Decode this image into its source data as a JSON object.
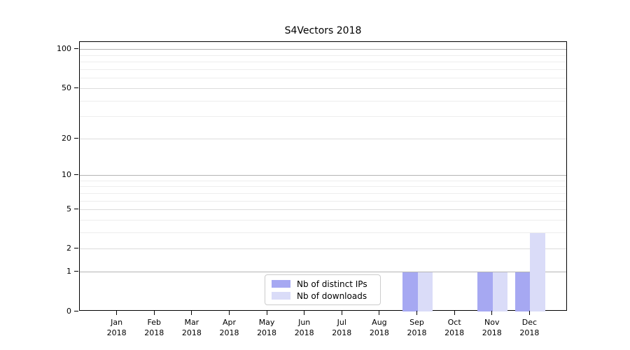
{
  "title": "S4Vectors 2018",
  "legend": {
    "items": [
      {
        "label": "Nb of distinct IPs",
        "color": "#a6a8f2"
      },
      {
        "label": "Nb of downloads",
        "color": "#dadcf8"
      }
    ]
  },
  "chart_data": {
    "type": "bar",
    "title": "S4Vectors 2018",
    "months": [
      "Jan",
      "Feb",
      "Mar",
      "Apr",
      "May",
      "Jun",
      "Jul",
      "Aug",
      "Sep",
      "Oct",
      "Nov",
      "Dec"
    ],
    "year": "2018",
    "categories": [
      "Jan 2018",
      "Feb 2018",
      "Mar 2018",
      "Apr 2018",
      "May 2018",
      "Jun 2018",
      "Jul 2018",
      "Aug 2018",
      "Sep 2018",
      "Oct 2018",
      "Nov 2018",
      "Dec 2018"
    ],
    "series": [
      {
        "name": "Nb of distinct IPs",
        "color": "#a6a8f2",
        "values": [
          0,
          0,
          0,
          0,
          0,
          0,
          0,
          0,
          1,
          0,
          1,
          1
        ]
      },
      {
        "name": "Nb of downloads",
        "color": "#dadcf8",
        "values": [
          0,
          0,
          0,
          0,
          0,
          0,
          0,
          0,
          1,
          0,
          1,
          3
        ]
      }
    ],
    "xlabel": "",
    "ylabel": "",
    "y_scale": "log1p",
    "y_max": 114.6,
    "y_tick_values": [
      0,
      1,
      2,
      5,
      10,
      20,
      50,
      100
    ],
    "y_tick_labels": [
      "0",
      "1",
      "2",
      "5",
      "10",
      "20",
      "50",
      "100"
    ],
    "y_decade_gridlines": [
      1,
      10,
      100
    ],
    "y_minor_gridlines": [
      3,
      4,
      6,
      7,
      8,
      9,
      30,
      40,
      60,
      70,
      80,
      90
    ],
    "grid": true,
    "legend_position": "lower-center-left inside plot"
  }
}
